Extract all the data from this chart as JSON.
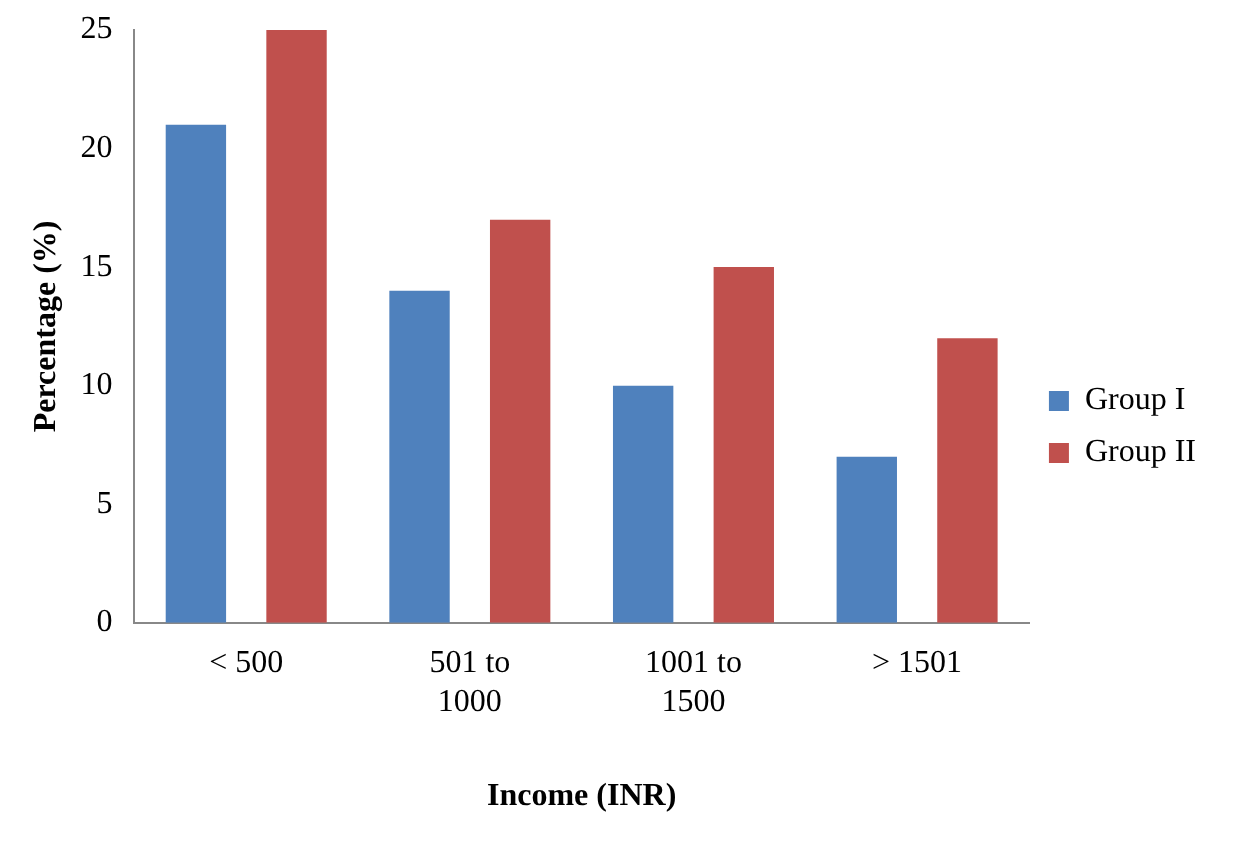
{
  "chart_data": {
    "type": "bar",
    "xlabel": "Income (INR)",
    "ylabel": "Percentage (%)",
    "categories": [
      "< 500",
      "501 to 1000",
      "1001 to 1500",
      "> 1501"
    ],
    "series": [
      {
        "name": "Group I",
        "color": "#4f81bd",
        "values": [
          21,
          14,
          10,
          7
        ]
      },
      {
        "name": "Group II",
        "color": "#c0504d",
        "values": [
          25,
          17,
          15,
          12
        ]
      }
    ],
    "ylim": [
      0,
      25
    ],
    "yticks": [
      0,
      5,
      10,
      15,
      20,
      25
    ],
    "grid": false,
    "legend": "right"
  }
}
